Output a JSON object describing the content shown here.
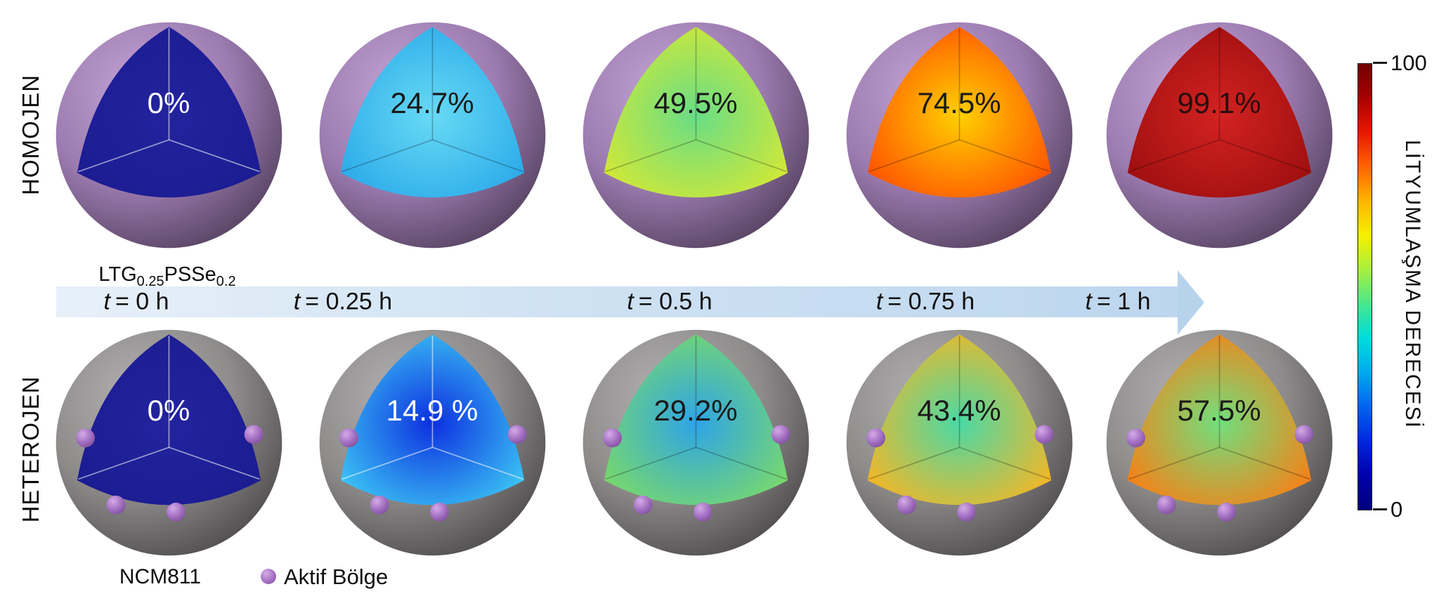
{
  "figure": {
    "rows": [
      {
        "label": "HOMOJEN",
        "material": {
          "p1": "LTG",
          "s1": "0.25",
          "p2": "PSSe",
          "s2": "0.2"
        },
        "shell": {
          "inner": "#c2a3d3",
          "mid": "#9c7bb0",
          "outer": "#54415f"
        },
        "has_active_sites": false,
        "spheres": [
          {
            "percent": "0%",
            "text_color": "#ffffff",
            "center": "#23239e",
            "edge": "#1b1b91"
          },
          {
            "percent": "24.7%",
            "text_color": "#1a1a1a",
            "center": "#67daf4",
            "edge": "#29a8e9"
          },
          {
            "percent": "49.5%",
            "text_color": "#1a1a1a",
            "center": "#68dd86",
            "edge": "#d9e931"
          },
          {
            "percent": "74.5%",
            "text_color": "#1a1a1a",
            "center": "#ffd000",
            "edge": "#ff4a00"
          },
          {
            "percent": "99.1%",
            "text_color": "#2a0e0e",
            "center": "#d32222",
            "edge": "#9c0e0e"
          }
        ]
      },
      {
        "label": "HETEROJEN",
        "material_label": "NCM811",
        "shell": {
          "inner": "#b2b0b0",
          "mid": "#8e8b8b",
          "outer": "#4e4b4c"
        },
        "has_active_sites": true,
        "spheres": [
          {
            "percent": "0%",
            "text_color": "#ffffff",
            "center": "#23239e",
            "edge": "#1b1b91"
          },
          {
            "percent": "14.9 %",
            "text_color": "#ffffff",
            "center": "#0d2fe0",
            "edge": "#3ecdf5"
          },
          {
            "percent": "29.2%",
            "text_color": "#1a1a1a",
            "center": "#2da4e8",
            "edge": "#7edc63"
          },
          {
            "percent": "43.4%",
            "text_color": "#1a1a1a",
            "center": "#49d9a6",
            "edge": "#ffb41e"
          },
          {
            "percent": "57.5%",
            "text_color": "#1a1a1a",
            "center": "#71df7d",
            "edge": "#ff7a10"
          }
        ]
      }
    ],
    "timeline": [
      {
        "var": "t",
        "text": "= 0 h"
      },
      {
        "var": "t",
        "text": "= 0.25 h"
      },
      {
        "var": "t",
        "text": "= 0.5 h"
      },
      {
        "var": "t",
        "text": "= 0.75 h"
      },
      {
        "var": "t",
        "text": "= 1 h"
      }
    ],
    "colorbar": {
      "max": "100",
      "min": "0",
      "title": "LİTYUMLAŞMA DERECESİ",
      "gradient_top_to_bottom": [
        "#730000",
        "#a80000",
        "#e81800",
        "#ff6400",
        "#ffb400",
        "#f6f000",
        "#a8f03c",
        "#46e88c",
        "#00dcdc",
        "#00aaf0",
        "#0064f0",
        "#0028dc",
        "#0000aa",
        "#000080"
      ]
    },
    "legend": {
      "label": "Aktif Bölge",
      "dot_gradient": [
        "#d4abe7",
        "#a06cc0",
        "#7c4f96"
      ]
    }
  },
  "chart_data": {
    "type": "line",
    "x": [
      0,
      0.25,
      0.5,
      0.75,
      1
    ],
    "xlabel": "t (h)",
    "ylabel": "LİTYUMLAŞMA DERECESİ (%)",
    "ylim": [
      0,
      100
    ],
    "series": [
      {
        "name": "HOMOJEN — LTG0.25PSSe0.2",
        "values": [
          0,
          24.7,
          49.5,
          74.5,
          99.1
        ]
      },
      {
        "name": "HETEROJEN — NCM811",
        "values": [
          0,
          14.9,
          29.2,
          43.4,
          57.5
        ]
      }
    ]
  }
}
